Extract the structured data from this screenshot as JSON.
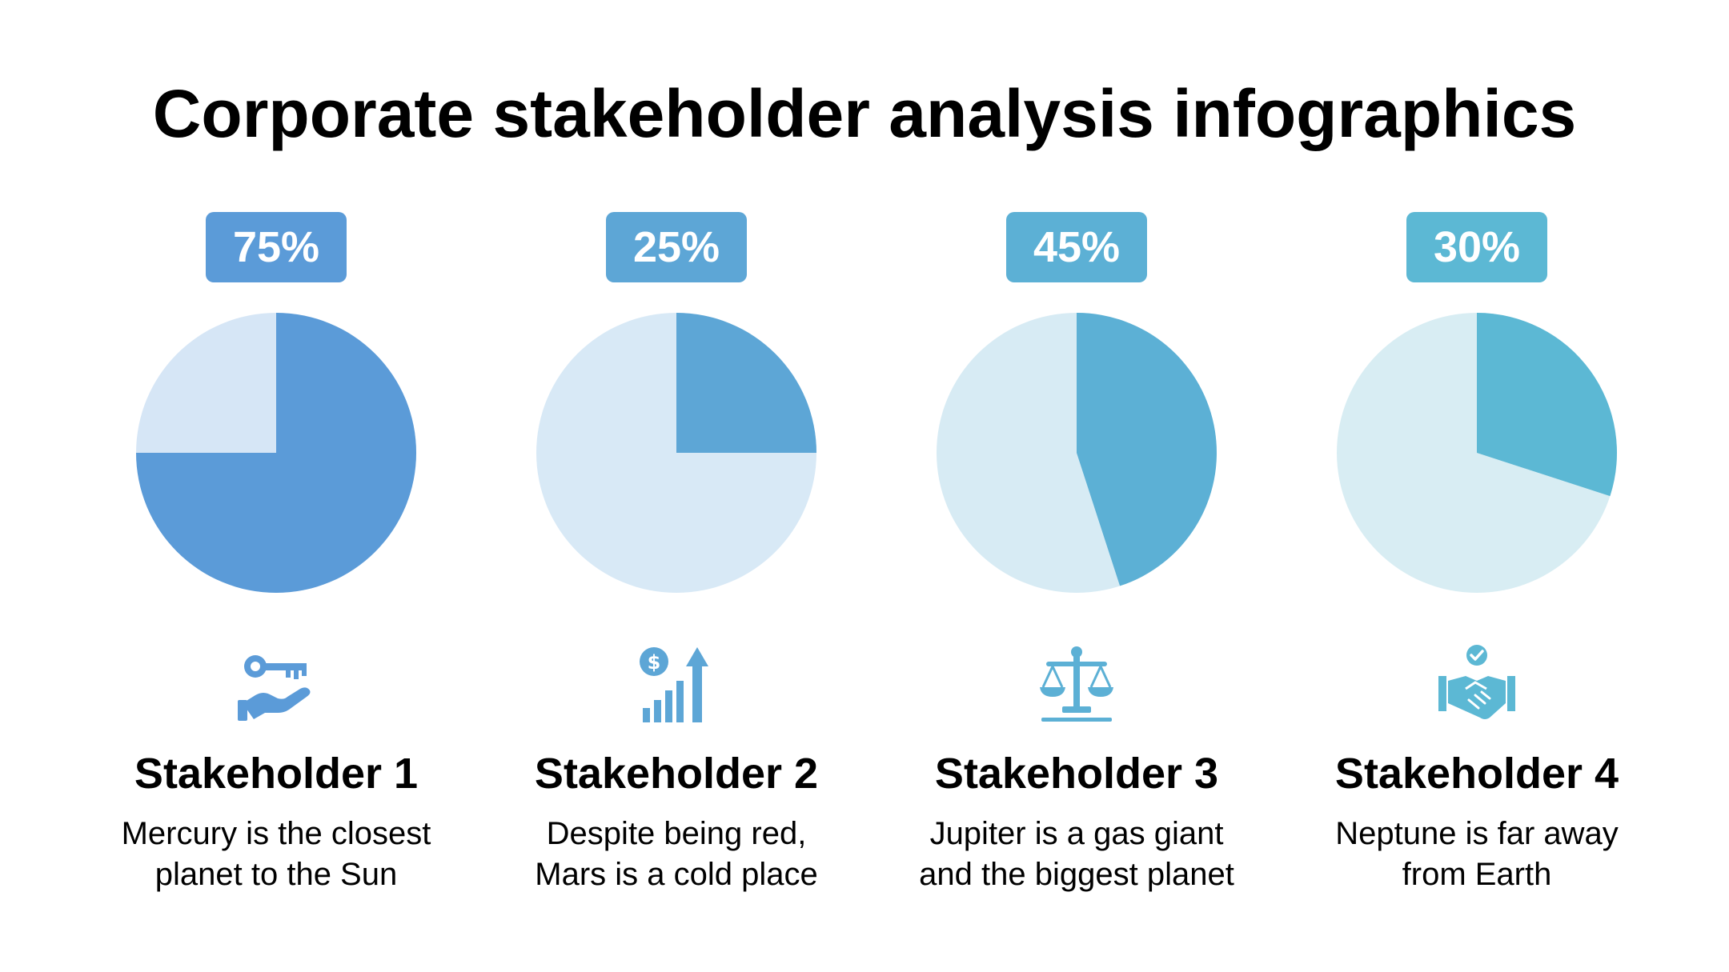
{
  "chart_data": {
    "type": "pie",
    "title": "Corporate stakeholder analysis infographics",
    "items": [
      {
        "name": "Stakeholder 1",
        "percent_label": "75%",
        "value": 75,
        "color": "#5b9bd8",
        "light_color": "#d6e6f6",
        "badge_color": "#5b9bd8",
        "icon": "key-in-hand-icon",
        "desc_lines": [
          "Mercury is the closest",
          "planet to the Sun"
        ]
      },
      {
        "name": "Stakeholder 2",
        "percent_label": "25%",
        "value": 25,
        "color": "#5da6d6",
        "light_color": "#d8e9f6",
        "badge_color": "#5da6d6",
        "icon": "money-growth-chart-icon",
        "desc_lines": [
          "Despite being red,",
          "Mars is a cold place"
        ]
      },
      {
        "name": "Stakeholder 3",
        "percent_label": "45%",
        "value": 45,
        "color": "#5cb0d5",
        "light_color": "#d7ebf4",
        "badge_color": "#5cb0d5",
        "icon": "balance-scale-icon",
        "desc_lines": [
          "Jupiter is a gas giant",
          "and the biggest planet"
        ]
      },
      {
        "name": "Stakeholder 4",
        "percent_label": "30%",
        "value": 30,
        "color": "#5cb8d4",
        "light_color": "#d8edf3",
        "badge_color": "#5cb8d4",
        "icon": "handshake-check-icon",
        "desc_lines": [
          "Neptune is far away",
          "from Earth"
        ]
      }
    ]
  }
}
